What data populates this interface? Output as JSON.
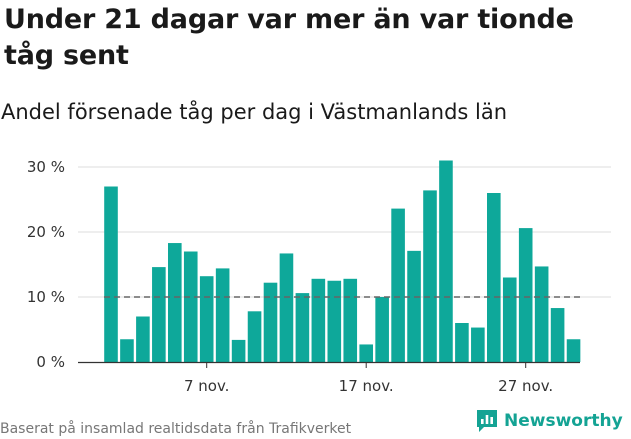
{
  "title": "Under 21 dagar var mer än var tionde tåg sent",
  "subtitle": "Andel försenade tåg per dag i Västmanlands län",
  "footer": "Baserat på insamlad realtidsdata från Trafikverket",
  "logo_text": "Newsworthy",
  "colors": {
    "bar": "#0ea89a",
    "grid": "#dddddd",
    "reference": "#666666",
    "logo": "#14a394"
  },
  "chart_data": {
    "type": "bar",
    "x_tick_labels": [
      "7 nov.",
      "17 nov.",
      "27 nov."
    ],
    "x_tick_days": [
      7,
      17,
      27
    ],
    "y_tick_labels": [
      "0 %",
      "10 %",
      "20 %",
      "30 %"
    ],
    "y_ticks": [
      0,
      10,
      20,
      30
    ],
    "ylim": [
      0,
      32
    ],
    "reference_line": 10,
    "grid": true,
    "series": [
      {
        "days": [
          1,
          2,
          3,
          4,
          5,
          6,
          7,
          8,
          9,
          10,
          11,
          12,
          13,
          14,
          15,
          16,
          17,
          18,
          19,
          20,
          21,
          22,
          23,
          24,
          25,
          26,
          27,
          28,
          29,
          30
        ],
        "values": [
          27.0,
          3.5,
          7.0,
          14.6,
          18.3,
          17.0,
          13.2,
          14.4,
          3.4,
          7.8,
          12.2,
          16.7,
          10.6,
          12.8,
          12.5,
          12.8,
          2.7,
          10.0,
          23.6,
          17.1,
          26.4,
          31.0,
          6.0,
          5.3,
          26.0,
          13.0,
          20.6,
          14.7,
          8.3,
          3.5
        ]
      }
    ]
  }
}
